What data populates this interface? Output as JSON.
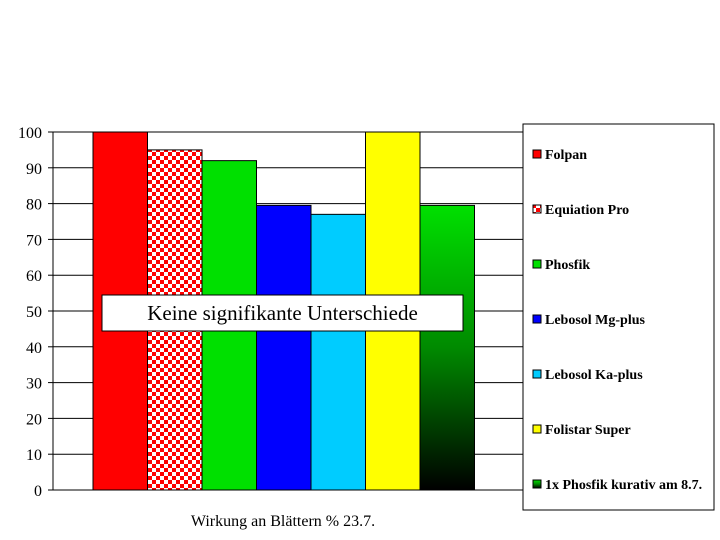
{
  "chart_data": {
    "type": "bar",
    "xlabel": "Wirkung an Blättern % 23.7.",
    "ylabel": "",
    "ylim": [
      0,
      100
    ],
    "ytick_step": 10,
    "grid": "horizontal",
    "legend_position": "right",
    "series": [
      {
        "name": "Folpan",
        "value": 100,
        "color": "#ff0000",
        "fill": "solid"
      },
      {
        "name": "Equiation Pro",
        "value": 95,
        "color": "#ff0000",
        "fill": "checker"
      },
      {
        "name": "Phosfik",
        "value": 92,
        "color": "#00e000",
        "fill": "solid"
      },
      {
        "name": "Lebosol Mg-plus",
        "value": 79.5,
        "color": "#0000ff",
        "fill": "solid"
      },
      {
        "name": "Lebosol Ka-plus",
        "value": 77,
        "color": "#00ccff",
        "fill": "solid"
      },
      {
        "name": "Folistar Super",
        "value": 100,
        "color": "#ffff00",
        "fill": "solid"
      },
      {
        "name": "1x Phosfik kurativ am 8.7.",
        "value": 79.5,
        "color": "#00e000",
        "fill": "gradient-to-black"
      }
    ],
    "annotation": "Keine signifikante Unterschiede"
  }
}
